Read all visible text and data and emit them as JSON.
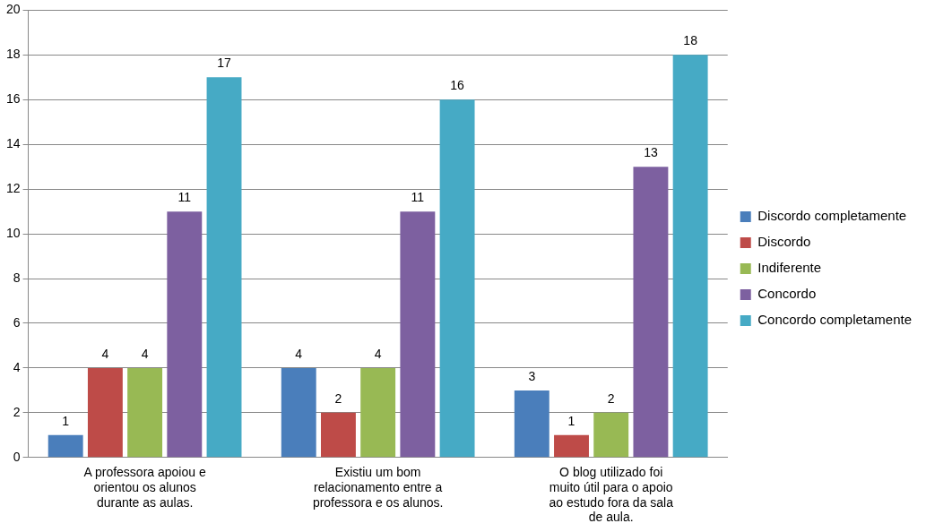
{
  "chart_data": {
    "type": "bar",
    "categories": [
      "A professora apoiou e orientou os alunos durante as aulas.",
      "Existiu um bom relacionamento entre a professora e os alunos.",
      "O blog utilizado foi muito útil para o apoio ao estudo fora da sala de aula."
    ],
    "series": [
      {
        "name": "Discordo completamente",
        "color": "#4a7ebb",
        "values": [
          1,
          4,
          3
        ]
      },
      {
        "name": "Discordo",
        "color": "#be4b48",
        "values": [
          4,
          2,
          1
        ]
      },
      {
        "name": "Indiferente",
        "color": "#98b954",
        "values": [
          4,
          4,
          2
        ]
      },
      {
        "name": "Concordo",
        "color": "#7d60a0",
        "values": [
          11,
          11,
          13
        ]
      },
      {
        "name": "Concordo completamente",
        "color": "#46aac5",
        "values": [
          17,
          16,
          18
        ]
      }
    ],
    "ylim": [
      0,
      20
    ],
    "yticks": [
      0,
      2,
      4,
      6,
      8,
      10,
      12,
      14,
      16,
      18,
      20
    ],
    "grid": "y",
    "legend": "right",
    "data_labels": true
  }
}
